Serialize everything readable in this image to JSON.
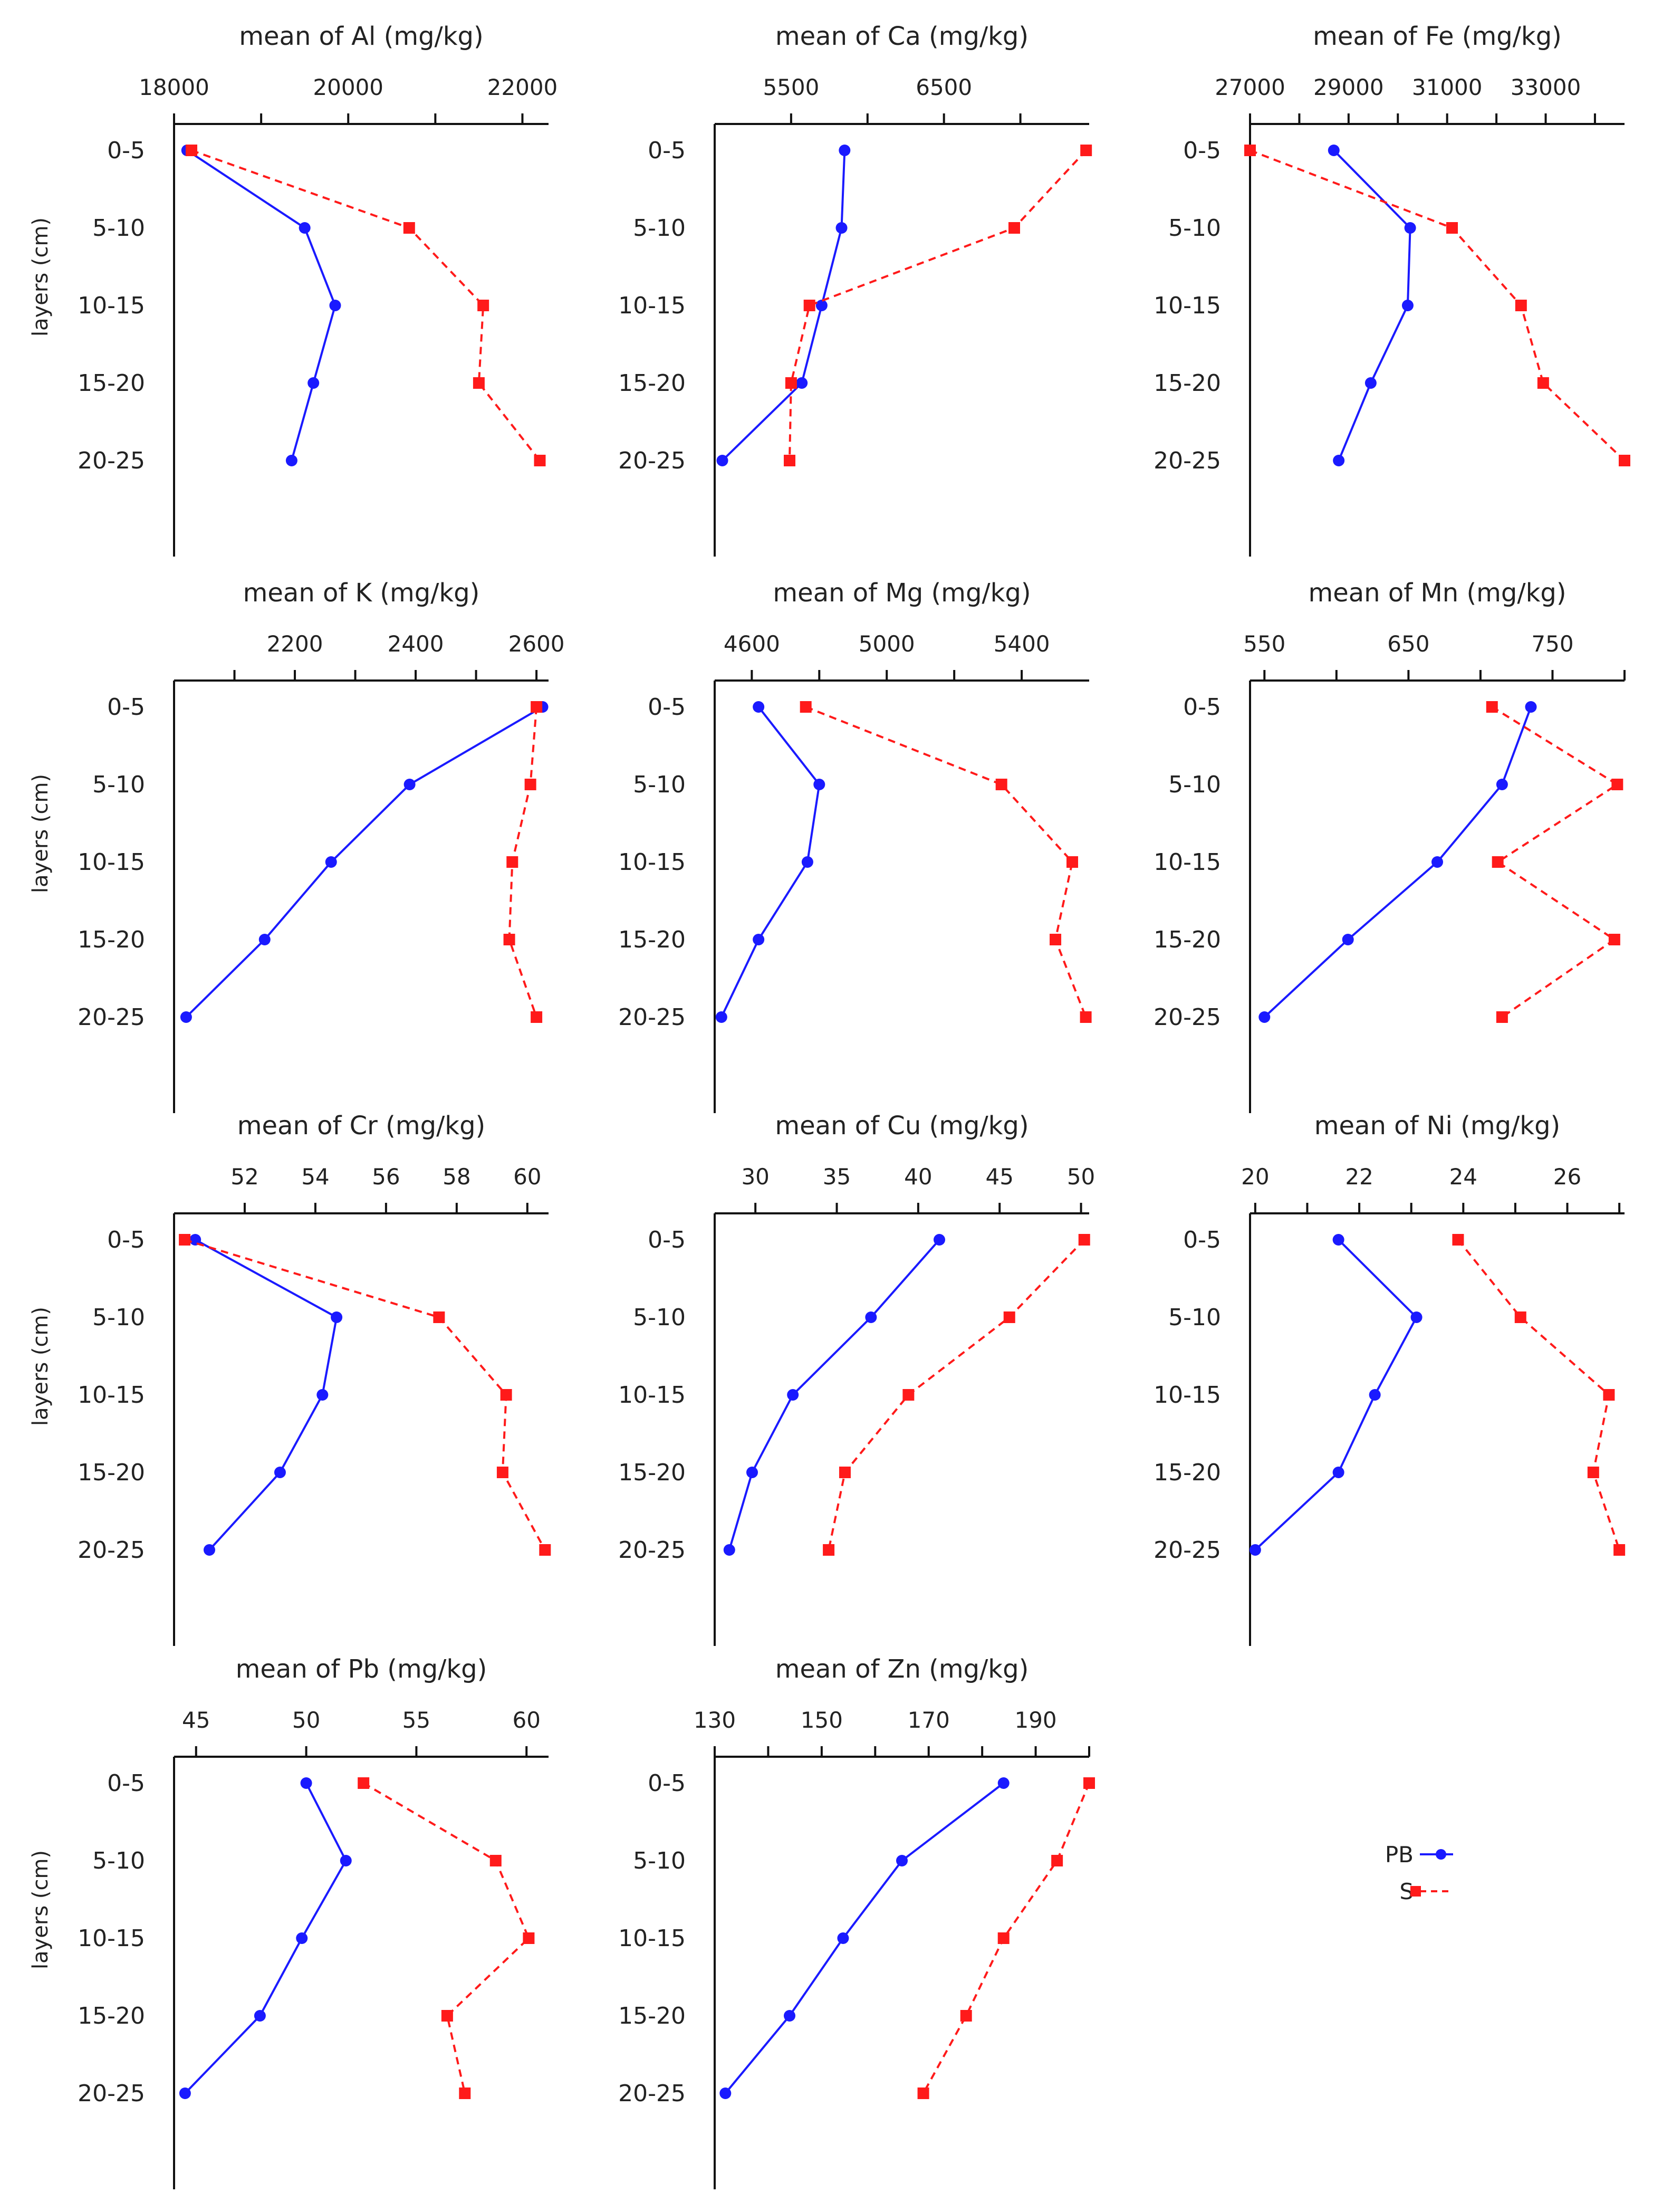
{
  "legend": [
    {
      "name": "PB",
      "color": "#1a1aff",
      "marker": "circle",
      "dash": "solid"
    },
    {
      "name": "S",
      "color": "#ff1a1a",
      "marker": "square",
      "dash": "dashed"
    }
  ],
  "y_axis_title": "layers (cm)",
  "chart_data": [
    {
      "type": "line",
      "title": "mean of Al (mg/kg)",
      "categories": [
        "0-5",
        "5-10",
        "10-15",
        "15-20",
        "20-25"
      ],
      "xlim": [
        18000,
        22300
      ],
      "xticks": [
        18000,
        19000,
        20000,
        21000,
        22000
      ],
      "xtick_labels": [
        "18000",
        "",
        "20000",
        "",
        "22000"
      ],
      "ylabel": "layers (cm)",
      "show_ylabel": true,
      "series": [
        {
          "name": "PB",
          "values": [
            18150,
            19500,
            19850,
            19600,
            19350
          ]
        },
        {
          "name": "S",
          "values": [
            18200,
            20700,
            21550,
            21500,
            22200
          ]
        }
      ]
    },
    {
      "type": "line",
      "title": "mean of Ca (mg/kg)",
      "categories": [
        "0-5",
        "5-10",
        "10-15",
        "15-20",
        "20-25"
      ],
      "xlim": [
        5000,
        7450
      ],
      "xticks": [
        5500,
        6000,
        6500,
        7000
      ],
      "xtick_labels": [
        "5500",
        "",
        "6500",
        ""
      ],
      "ylabel": "",
      "show_ylabel": false,
      "series": [
        {
          "name": "PB",
          "values": [
            5850,
            5830,
            5700,
            5570,
            5050
          ]
        },
        {
          "name": "S",
          "values": [
            7430,
            6960,
            5620,
            5500,
            5490
          ]
        }
      ]
    },
    {
      "type": "line",
      "title": "mean of Fe (mg/kg)",
      "categories": [
        "0-5",
        "5-10",
        "10-15",
        "15-20",
        "20-25"
      ],
      "xlim": [
        27000,
        34600
      ],
      "xticks": [
        27000,
        28000,
        29000,
        30000,
        31000,
        32000,
        33000,
        34000
      ],
      "xtick_labels": [
        "27000",
        "",
        "29000",
        "",
        "31000",
        "",
        "33000",
        ""
      ],
      "ylabel": "",
      "show_ylabel": false,
      "series": [
        {
          "name": "PB",
          "values": [
            28700,
            30250,
            30200,
            29450,
            28800
          ]
        },
        {
          "name": "S",
          "values": [
            27000,
            31100,
            32500,
            32950,
            34600
          ]
        }
      ]
    },
    {
      "type": "line",
      "title": "mean of K (mg/kg)",
      "categories": [
        "0-5",
        "5-10",
        "10-15",
        "15-20",
        "20-25"
      ],
      "xlim": [
        2000,
        2620
      ],
      "xticks": [
        2100,
        2200,
        2300,
        2400,
        2500,
        2600
      ],
      "xtick_labels": [
        "",
        "2200",
        "",
        "2400",
        "",
        "2600"
      ],
      "ylabel": "layers (cm)",
      "show_ylabel": true,
      "series": [
        {
          "name": "PB",
          "values": [
            2610,
            2390,
            2260,
            2150,
            2020
          ]
        },
        {
          "name": "S",
          "values": [
            2600,
            2590,
            2560,
            2555,
            2600
          ]
        }
      ]
    },
    {
      "type": "line",
      "title": "mean of Mg (mg/kg)",
      "categories": [
        "0-5",
        "5-10",
        "10-15",
        "15-20",
        "20-25"
      ],
      "xlim": [
        4490,
        5600
      ],
      "xticks": [
        4600,
        4800,
        5000,
        5200,
        5400
      ],
      "xtick_labels": [
        "4600",
        "",
        "5000",
        "",
        "5400"
      ],
      "ylabel": "",
      "show_ylabel": false,
      "series": [
        {
          "name": "PB",
          "values": [
            4620,
            4800,
            4765,
            4620,
            4510
          ]
        },
        {
          "name": "S",
          "values": [
            4760,
            5340,
            5550,
            5500,
            5590
          ]
        }
      ]
    },
    {
      "type": "line",
      "title": "mean of Mn (mg/kg)",
      "categories": [
        "0-5",
        "5-10",
        "10-15",
        "15-20",
        "20-25"
      ],
      "xlim": [
        540,
        800
      ],
      "xticks": [
        550,
        600,
        650,
        700,
        750,
        800
      ],
      "xtick_labels": [
        "550",
        "",
        "650",
        "",
        "750",
        ""
      ],
      "ylabel": "",
      "show_ylabel": false,
      "series": [
        {
          "name": "PB",
          "values": [
            735,
            715,
            670,
            608,
            550
          ]
        },
        {
          "name": "S",
          "values": [
            708,
            795,
            712,
            793,
            715
          ]
        }
      ]
    },
    {
      "type": "line",
      "title": "mean of Cr (mg/kg)",
      "categories": [
        "0-5",
        "5-10",
        "10-15",
        "15-20",
        "20-25"
      ],
      "xlim": [
        50,
        60.6
      ],
      "xticks": [
        52,
        54,
        56,
        58,
        60
      ],
      "xtick_labels": [
        "52",
        "54",
        "56",
        "58",
        "60"
      ],
      "ylabel": "layers (cm)",
      "show_ylabel": true,
      "series": [
        {
          "name": "PB",
          "values": [
            50.6,
            54.6,
            54.2,
            53.0,
            51.0
          ]
        },
        {
          "name": "S",
          "values": [
            50.3,
            57.5,
            59.4,
            59.3,
            60.5
          ]
        }
      ]
    },
    {
      "type": "line",
      "title": "mean of Cu (mg/kg)",
      "categories": [
        "0-5",
        "5-10",
        "10-15",
        "15-20",
        "20-25"
      ],
      "xlim": [
        27.5,
        50.5
      ],
      "xticks": [
        30,
        35,
        40,
        45,
        50
      ],
      "xtick_labels": [
        "30",
        "35",
        "40",
        "45",
        "50"
      ],
      "ylabel": "",
      "show_ylabel": false,
      "series": [
        {
          "name": "PB",
          "values": [
            41.3,
            37.1,
            32.3,
            29.8,
            28.4
          ]
        },
        {
          "name": "S",
          "values": [
            50.2,
            45.6,
            39.4,
            35.5,
            34.5
          ]
        }
      ]
    },
    {
      "type": "line",
      "title": "mean of Ni (mg/kg)",
      "categories": [
        "0-5",
        "5-10",
        "10-15",
        "15-20",
        "20-25"
      ],
      "xlim": [
        19.9,
        27.1
      ],
      "xticks": [
        20,
        21,
        22,
        23,
        24,
        25,
        26,
        27
      ],
      "xtick_labels": [
        "20",
        "",
        "22",
        "",
        "24",
        "",
        "26",
        ""
      ],
      "ylabel": "",
      "show_ylabel": false,
      "series": [
        {
          "name": "PB",
          "values": [
            21.6,
            23.1,
            22.3,
            21.6,
            20.0
          ]
        },
        {
          "name": "S",
          "values": [
            23.9,
            25.1,
            26.8,
            26.5,
            27.0
          ]
        }
      ]
    },
    {
      "type": "line",
      "title": "mean of Pb (mg/kg)",
      "categories": [
        "0-5",
        "5-10",
        "10-15",
        "15-20",
        "20-25"
      ],
      "xlim": [
        44,
        61
      ],
      "xticks": [
        45,
        50,
        55,
        60
      ],
      "xtick_labels": [
        "45",
        "50",
        "55",
        "60"
      ],
      "ylabel": "layers (cm)",
      "show_ylabel": true,
      "series": [
        {
          "name": "PB",
          "values": [
            50.0,
            51.8,
            49.8,
            47.9,
            44.5
          ]
        },
        {
          "name": "S",
          "values": [
            52.6,
            58.6,
            60.1,
            56.4,
            57.2
          ]
        }
      ]
    },
    {
      "type": "line",
      "title": "mean of Zn (mg/kg)",
      "categories": [
        "0-5",
        "5-10",
        "10-15",
        "15-20",
        "20-25"
      ],
      "xlim": [
        130,
        200
      ],
      "xticks": [
        130,
        140,
        150,
        160,
        170,
        180,
        190,
        200
      ],
      "xtick_labels": [
        "130",
        "",
        "150",
        "",
        "170",
        "",
        "190",
        ""
      ],
      "ylabel": "",
      "show_ylabel": false,
      "series": [
        {
          "name": "PB",
          "values": [
            184,
            165,
            154,
            144,
            132
          ]
        },
        {
          "name": "S",
          "values": [
            200,
            194,
            184,
            177,
            169
          ]
        }
      ]
    }
  ]
}
